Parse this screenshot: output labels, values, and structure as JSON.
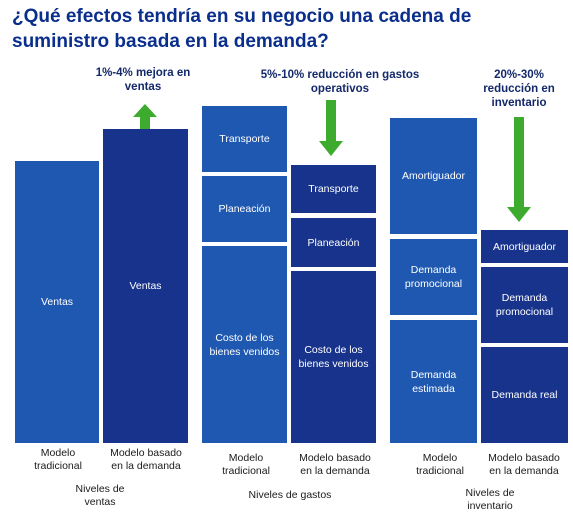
{
  "title": "¿Qué efectos tendría en su negocio una cadena de suministro basada en la demanda?",
  "colors": {
    "light_bar": "#1f58b0",
    "dark_bar": "#17338c",
    "arrow": "#3dab2e",
    "title": "#0a2e8c"
  },
  "sales": {
    "callout": "1%-4% mejora en ventas",
    "traditional_block": "Ventas",
    "demand_block": "Ventas",
    "label_traditional": "Modelo tradicional",
    "label_demand": "Modelo basado en la demanda",
    "group_label": "Niveles de ventas"
  },
  "costs": {
    "callout": "5%-10% reducción en gastos operativos",
    "traditional": [
      "Transporte",
      "Planeación",
      "Costo de los bienes venidos"
    ],
    "demand": [
      "Transporte",
      "Planeación",
      "Costo de los bienes venidos"
    ],
    "label_traditional": "Modelo tradicional",
    "label_demand": "Modelo basado en la demanda",
    "group_label": "Niveles de gastos"
  },
  "inventory": {
    "callout": "20%-30% reducción en inventario",
    "traditional": [
      "Amortiguador",
      "Demanda promocional",
      "Demanda estimada"
    ],
    "demand": [
      "Amortiguador",
      "Demanda promocional",
      "Demanda real"
    ],
    "label_traditional": "Modelo tradicional",
    "label_demand": "Modelo basado en la demanda",
    "group_label": "Niveles de inventario"
  }
}
